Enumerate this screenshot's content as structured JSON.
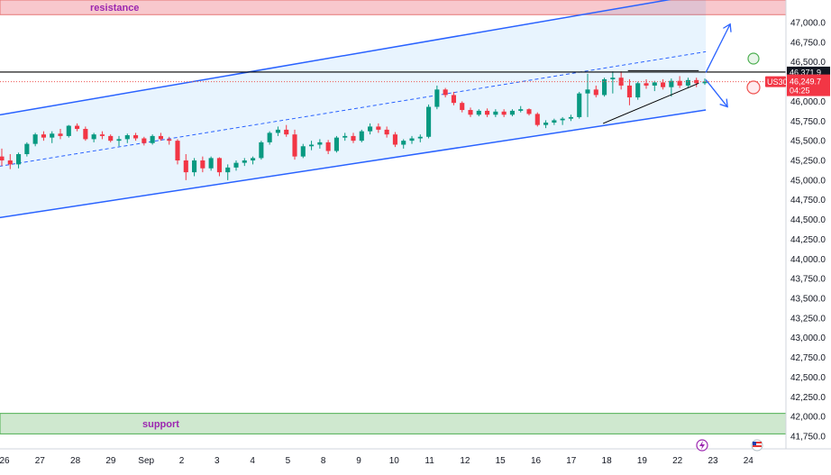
{
  "chart_data": {
    "type": "candlestick",
    "symbol": "US30",
    "y_axis": {
      "ylim": [
        41650,
        47180
      ],
      "ticks": [
        41750,
        42000,
        42250,
        42500,
        42750,
        43000,
        43250,
        43500,
        43750,
        44000,
        44250,
        44500,
        44750,
        45000,
        45250,
        45500,
        45750,
        46000,
        46250,
        46500,
        46750,
        47000
      ],
      "tick_labels": [
        "41,750.0",
        "42,000.0",
        "42,250.0",
        "42,500.0",
        "42,750.0",
        "43,000.0",
        "43,250.0",
        "43,500.0",
        "43,750.0",
        "44,000.0",
        "44,250.0",
        "44,500.0",
        "44,750.0",
        "45,000.0",
        "45,250.0",
        "45,500.0",
        "45,750.0",
        "46,000.0",
        "46,250.0",
        "46,500.0",
        "46,750.0",
        "47,000.0"
      ]
    },
    "x_axis": {
      "tick_labels": [
        "26",
        "27",
        "28",
        "29",
        "Sep",
        "2",
        "3",
        "4",
        "5",
        "8",
        "9",
        "10",
        "11",
        "12",
        "15",
        "16",
        "17",
        "18",
        "19",
        "22",
        "23",
        "24"
      ]
    },
    "zones": [
      {
        "label": "resistance",
        "from": 47100,
        "to": 47300,
        "color": "#f8c8cd"
      },
      {
        "label": "support",
        "from": 41780,
        "to": 42040,
        "color": "#cfe8cf"
      }
    ],
    "horizontal_line": {
      "value": 46371.9,
      "label": "46,371.9"
    },
    "current_price": {
      "value": 46249.7,
      "label": "46,249.7",
      "countdown": "04:25",
      "symbol": "US30"
    },
    "channel": {
      "upper": [
        [
          -0.5,
          45800
        ],
        [
          19.8,
          47370
        ]
      ],
      "lower": [
        [
          -0.5,
          44500
        ],
        [
          19.8,
          45890
        ]
      ]
    },
    "candles_ohlc": [
      [
        45300,
        45400,
        45180,
        45250
      ],
      [
        45250,
        45330,
        45140,
        45200
      ],
      [
        45200,
        45350,
        45150,
        45330
      ],
      [
        45330,
        45480,
        45300,
        45460
      ],
      [
        45460,
        45600,
        45430,
        45580
      ],
      [
        45580,
        45620,
        45500,
        45540
      ],
      [
        45540,
        45620,
        45470,
        45590
      ],
      [
        45590,
        45650,
        45520,
        45560
      ],
      [
        45560,
        45700,
        45540,
        45690
      ],
      [
        45690,
        45720,
        45620,
        45650
      ],
      [
        45650,
        45680,
        45500,
        45520
      ],
      [
        45520,
        45600,
        45480,
        45580
      ],
      [
        45580,
        45620,
        45520,
        45560
      ],
      [
        45560,
        45580,
        45480,
        45500
      ],
      [
        45500,
        45560,
        45430,
        45520
      ],
      [
        45520,
        45590,
        45470,
        45570
      ],
      [
        45570,
        45600,
        45500,
        45530
      ],
      [
        45530,
        45550,
        45440,
        45470
      ],
      [
        45470,
        45580,
        45450,
        45560
      ],
      [
        45560,
        45600,
        45500,
        45520
      ],
      [
        45520,
        45550,
        45450,
        45500
      ],
      [
        45500,
        45520,
        45200,
        45250
      ],
      [
        45250,
        45330,
        45000,
        45100
      ],
      [
        45100,
        45280,
        45050,
        45250
      ],
      [
        45250,
        45300,
        45100,
        45150
      ],
      [
        45150,
        45300,
        45120,
        45280
      ],
      [
        45280,
        45290,
        45050,
        45100
      ],
      [
        45100,
        45200,
        45000,
        45160
      ],
      [
        45160,
        45250,
        45120,
        45220
      ],
      [
        45220,
        45280,
        45180,
        45250
      ],
      [
        45250,
        45300,
        45200,
        45280
      ],
      [
        45280,
        45500,
        45260,
        45480
      ],
      [
        45480,
        45620,
        45450,
        45600
      ],
      [
        45600,
        45680,
        45560,
        45640
      ],
      [
        45640,
        45700,
        45550,
        45580
      ],
      [
        45580,
        45640,
        45260,
        45300
      ],
      [
        45300,
        45460,
        45280,
        45430
      ],
      [
        45430,
        45500,
        45380,
        45450
      ],
      [
        45450,
        45520,
        45400,
        45480
      ],
      [
        45480,
        45510,
        45330,
        45370
      ],
      [
        45370,
        45560,
        45350,
        45540
      ],
      [
        45540,
        45600,
        45500,
        45560
      ],
      [
        45560,
        45600,
        45470,
        45500
      ],
      [
        45500,
        45640,
        45480,
        45620
      ],
      [
        45620,
        45720,
        45580,
        45680
      ],
      [
        45680,
        45720,
        45600,
        45640
      ],
      [
        45640,
        45680,
        45540,
        45580
      ],
      [
        45580,
        45610,
        45420,
        45450
      ],
      [
        45450,
        45520,
        45400,
        45500
      ],
      [
        45500,
        45560,
        45460,
        45530
      ],
      [
        45530,
        45580,
        45480,
        45550
      ],
      [
        45550,
        45960,
        45530,
        45930
      ],
      [
        45930,
        46200,
        45900,
        46150
      ],
      [
        46150,
        46170,
        46050,
        46080
      ],
      [
        46080,
        46120,
        45950,
        45980
      ],
      [
        45980,
        46000,
        45860,
        45890
      ],
      [
        45890,
        45920,
        45800,
        45830
      ],
      [
        45830,
        45900,
        45810,
        45880
      ],
      [
        45880,
        45910,
        45800,
        45830
      ],
      [
        45830,
        45900,
        45800,
        45870
      ],
      [
        45870,
        45900,
        45800,
        45830
      ],
      [
        45830,
        45900,
        45810,
        45880
      ],
      [
        45880,
        45940,
        45860,
        45900
      ],
      [
        45900,
        45910,
        45820,
        45840
      ],
      [
        45840,
        45860,
        45680,
        45700
      ],
      [
        45700,
        45760,
        45660,
        45730
      ],
      [
        45730,
        45780,
        45700,
        45760
      ],
      [
        45760,
        45800,
        45700,
        45780
      ],
      [
        45780,
        45830,
        45750,
        45800
      ],
      [
        45800,
        46120,
        45780,
        46100
      ],
      [
        46100,
        46350,
        45800,
        46150
      ],
      [
        46150,
        46200,
        46050,
        46080
      ],
      [
        46080,
        46300,
        46060,
        46280
      ],
      [
        46280,
        46380,
        46100,
        46300
      ],
      [
        46300,
        46380,
        46150,
        46200
      ],
      [
        46200,
        46280,
        45950,
        46050
      ],
      [
        46050,
        46250,
        46020,
        46230
      ],
      [
        46230,
        46280,
        46160,
        46200
      ],
      [
        46200,
        46260,
        46130,
        46240
      ],
      [
        46240,
        46280,
        46150,
        46180
      ],
      [
        46180,
        46290,
        46060,
        46260
      ],
      [
        46260,
        46320,
        46170,
        46200
      ],
      [
        46200,
        46300,
        46180,
        46270
      ],
      [
        46270,
        46300,
        46180,
        46230
      ],
      [
        46230,
        46290,
        46210,
        46250
      ]
    ]
  }
}
